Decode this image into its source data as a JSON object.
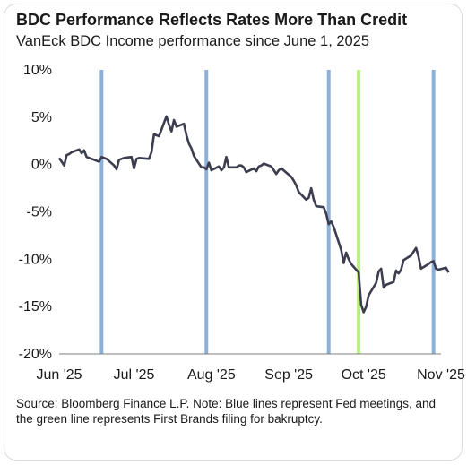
{
  "chart_data": {
    "type": "line",
    "title": "BDC Performance Reflects Rates More Than Credit",
    "subtitle": "VanEck BDC Income performance since June 1, 2025",
    "x_tick_labels": [
      "Jun '25",
      "Jul '25",
      "Aug '25",
      "Sep '25",
      "Oct '25",
      "Nov '25"
    ],
    "x_range": [
      "2025-06-01",
      "2025-11-01"
    ],
    "ylim": [
      -20,
      10
    ],
    "y_ticks": [
      10,
      5,
      0,
      -5,
      -10,
      -15,
      -20
    ],
    "y_tick_labels": [
      "10%",
      "5%",
      "0%",
      "-5%",
      "-10%",
      "-15%",
      "-20%"
    ],
    "grid": false,
    "series": [
      {
        "color": "#3d3d50",
        "x": [
          "2025-06-01",
          "2025-06-02",
          "2025-06-03",
          "2025-06-04",
          "2025-06-05",
          "2025-06-06",
          "2025-06-09",
          "2025-06-10",
          "2025-06-11",
          "2025-06-12",
          "2025-06-13",
          "2025-06-16",
          "2025-06-17",
          "2025-06-18",
          "2025-06-20",
          "2025-06-23",
          "2025-06-24",
          "2025-06-25",
          "2025-06-26",
          "2025-06-27",
          "2025-06-30",
          "2025-07-01",
          "2025-07-02",
          "2025-07-03",
          "2025-07-07",
          "2025-07-08",
          "2025-07-09",
          "2025-07-10",
          "2025-07-11",
          "2025-07-14",
          "2025-07-15",
          "2025-07-16",
          "2025-07-17",
          "2025-07-18",
          "2025-07-21",
          "2025-07-22",
          "2025-07-23",
          "2025-07-24",
          "2025-07-25",
          "2025-07-28",
          "2025-07-29",
          "2025-07-30",
          "2025-07-31",
          "2025-08-01",
          "2025-08-04",
          "2025-08-05",
          "2025-08-06",
          "2025-08-07",
          "2025-08-08",
          "2025-08-11",
          "2025-08-12",
          "2025-08-13",
          "2025-08-14",
          "2025-08-15",
          "2025-08-18",
          "2025-08-19",
          "2025-08-20",
          "2025-08-21",
          "2025-08-22",
          "2025-08-25",
          "2025-08-26",
          "2025-08-27",
          "2025-08-28",
          "2025-08-29",
          "2025-09-02",
          "2025-09-03",
          "2025-09-04",
          "2025-09-05",
          "2025-09-08",
          "2025-09-09",
          "2025-09-10",
          "2025-09-11",
          "2025-09-12",
          "2025-09-15",
          "2025-09-16",
          "2025-09-17",
          "2025-09-18",
          "2025-09-19",
          "2025-09-22",
          "2025-09-23",
          "2025-09-24",
          "2025-09-25",
          "2025-09-26",
          "2025-09-29",
          "2025-09-30",
          "2025-10-01",
          "2025-10-02",
          "2025-10-03",
          "2025-10-06",
          "2025-10-07",
          "2025-10-08",
          "2025-10-09",
          "2025-10-10",
          "2025-10-13",
          "2025-10-14",
          "2025-10-15",
          "2025-10-16",
          "2025-10-17",
          "2025-10-20",
          "2025-10-21",
          "2025-10-22",
          "2025-10-23",
          "2025-10-24",
          "2025-10-27",
          "2025-10-28",
          "2025-10-29",
          "2025-10-30",
          "2025-10-31",
          "2025-11-03",
          "2025-11-04"
        ],
        "values": [
          0.7,
          0.3,
          -0.1,
          1.0,
          1.1,
          1.3,
          1.6,
          1.2,
          1.5,
          0.8,
          0.7,
          0.4,
          0.3,
          0.8,
          0.6,
          -0.1,
          -0.5,
          0.5,
          0.6,
          0.7,
          0.8,
          -0.4,
          0.6,
          0.7,
          0.6,
          1.3,
          3.2,
          3.1,
          3.0,
          5.1,
          4.2,
          3.5,
          4.7,
          4.0,
          4.3,
          3.1,
          2.2,
          1.7,
          0.9,
          -0.3,
          -0.3,
          -0.5,
          0.2,
          -0.6,
          -0.2,
          -0.6,
          -0.3,
          0.8,
          -0.3,
          -0.3,
          -0.1,
          -0.1,
          -0.3,
          -0.8,
          -0.4,
          -0.7,
          -0.2,
          -0.1,
          0.1,
          -0.2,
          -0.6,
          -1.0,
          -0.6,
          -0.4,
          -1.3,
          -1.7,
          -2.2,
          -2.9,
          -3.7,
          -3.5,
          -2.5,
          -3.7,
          -4.4,
          -4.5,
          -5.2,
          -6.3,
          -6.0,
          -6.6,
          -9.0,
          -10.4,
          -9.3,
          -10.0,
          -10.5,
          -11.4,
          -14.8,
          -15.6,
          -15.0,
          -13.8,
          -12.5,
          -11.3,
          -11.0,
          -13.0,
          -12.7,
          -12.4,
          -11.2,
          -11.5,
          -11.1,
          -10.1,
          -9.6,
          -9.2,
          -8.8,
          -9.7,
          -11.0,
          -10.5,
          -10.3,
          -10.2,
          -11.0,
          -11.1,
          -10.9,
          -11.4
        ]
      }
    ],
    "vertical_markers": [
      {
        "date": "2025-06-18",
        "color": "#8db0d8"
      },
      {
        "date": "2025-07-30",
        "color": "#8db0d8"
      },
      {
        "date": "2025-09-17",
        "color": "#8db0d8"
      },
      {
        "date": "2025-09-29",
        "color": "#b8f07a"
      },
      {
        "date": "2025-10-29",
        "color": "#8db0d8"
      }
    ]
  },
  "source_note": "Source: Bloomberg Finance L.P. Note: Blue lines represent Fed meetings, and the green line represents First Brands filing for bakruptcy."
}
